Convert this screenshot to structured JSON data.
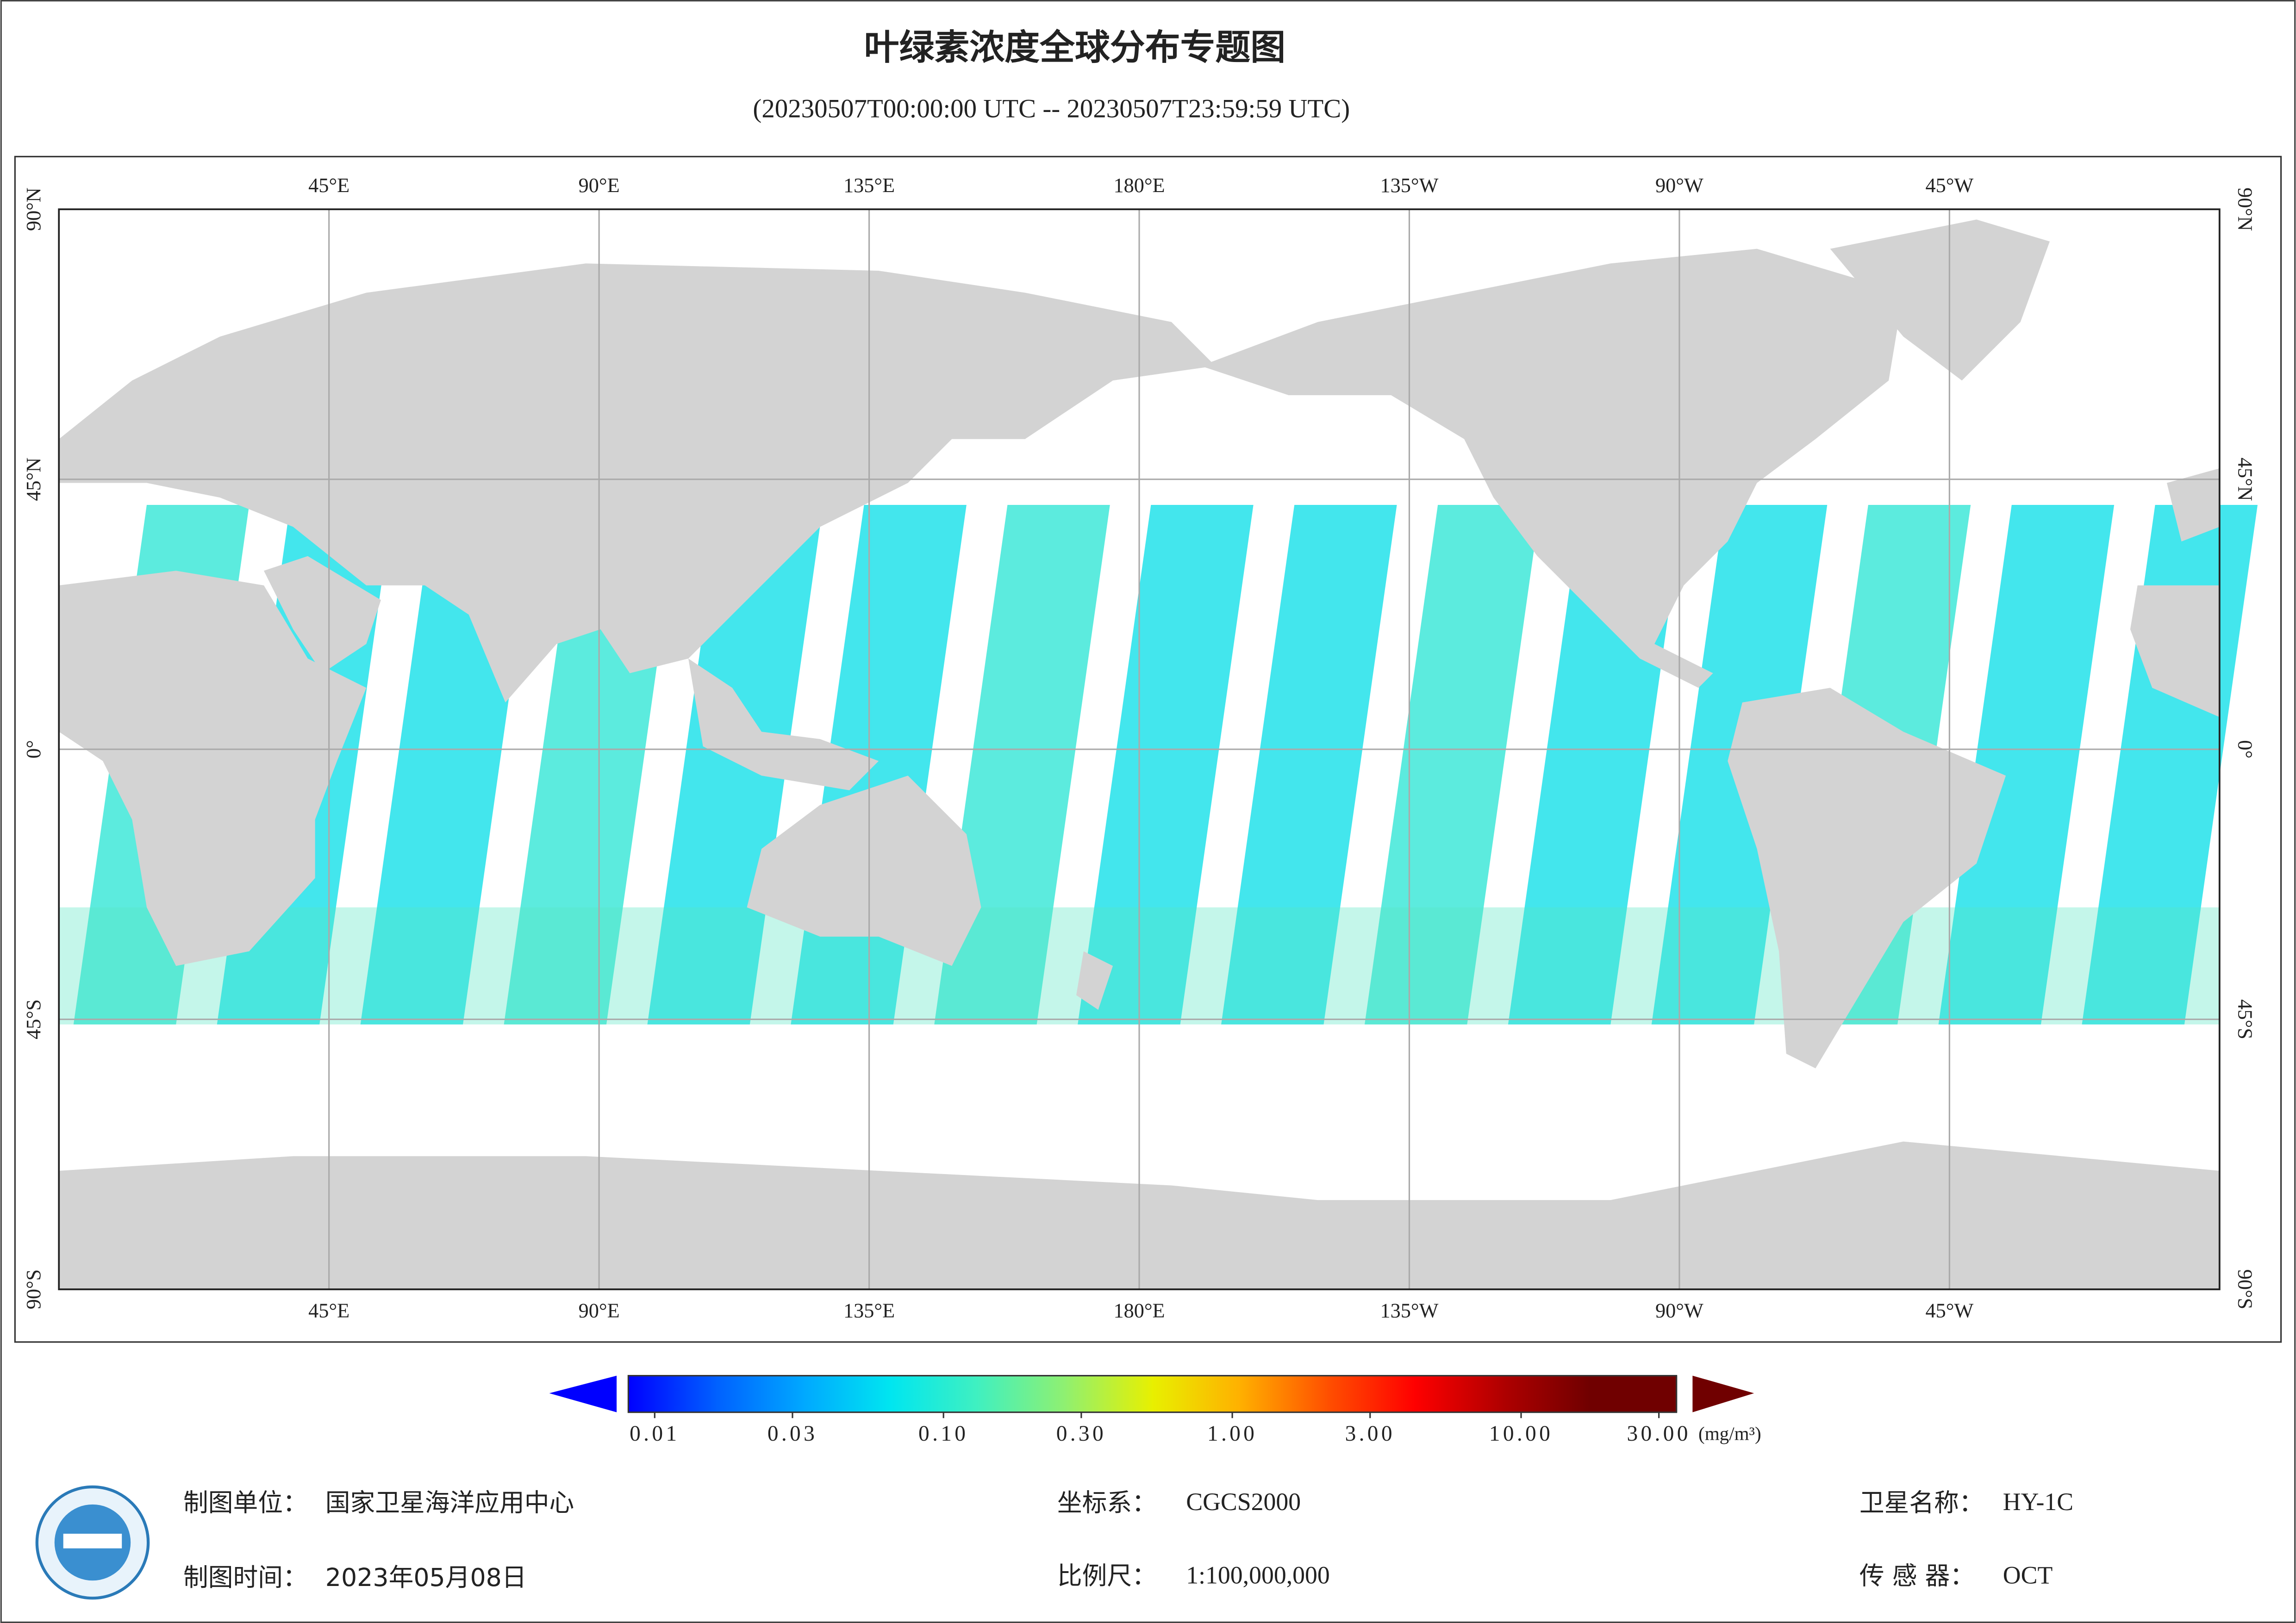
{
  "header": {
    "title": "叶绿素浓度全球分布专题图",
    "subtitle": "(20230507T00:00:00 UTC -- 20230507T23:59:59 UTC)"
  },
  "map": {
    "lon_ticks": [
      {
        "value": 45,
        "label": "45°E"
      },
      {
        "value": 90,
        "label": "90°E"
      },
      {
        "value": 135,
        "label": "135°E"
      },
      {
        "value": 180,
        "label": "180°E"
      },
      {
        "value": -135,
        "label": "135°W"
      },
      {
        "value": -90,
        "label": "90°W"
      },
      {
        "value": -45,
        "label": "45°W"
      }
    ],
    "lat_ticks": [
      {
        "value": 90,
        "label": "90°N"
      },
      {
        "value": 45,
        "label": "45°N"
      },
      {
        "value": 0,
        "label": "0°"
      },
      {
        "value": -45,
        "label": "45°S"
      },
      {
        "value": -90,
        "label": "90°S"
      }
    ],
    "land_color": "#d3d3d3",
    "grid": true
  },
  "colorbar": {
    "range": [
      0.01,
      30
    ],
    "log": true,
    "colors": [
      "#0000ff",
      "#0060ff",
      "#00a8ff",
      "#00e6f0",
      "#40f0c0",
      "#90f070",
      "#e8f000",
      "#ffb000",
      "#ff5000",
      "#ff0000",
      "#b00000",
      "#700000"
    ],
    "ticks": [
      {
        "value": 0.01,
        "label": "0.01"
      },
      {
        "value": 0.03,
        "label": "0.03"
      },
      {
        "value": 0.1,
        "label": "0.10"
      },
      {
        "value": 0.3,
        "label": "0.30"
      },
      {
        "value": 1,
        "label": "1.00"
      },
      {
        "value": 3,
        "label": "3.00"
      },
      {
        "value": 10,
        "label": "10.00"
      },
      {
        "value": 30,
        "label": "30.00"
      }
    ],
    "unit": "(mg/m³)"
  },
  "footer": {
    "unit": {
      "label": "制图单位：",
      "value": "国家卫星海洋应用中心"
    },
    "date": {
      "label": "制图时间：",
      "value": "2023年05月08日"
    },
    "crs": {
      "label": "坐标系：",
      "value": "CGCS2000"
    },
    "scale": {
      "label": "比例尺：",
      "value": "1:100,000,000"
    },
    "satellite": {
      "label": "卫星名称：",
      "value": "HY-1C"
    },
    "sensor": {
      "label": "传 感 器：",
      "value": "OCT"
    }
  }
}
